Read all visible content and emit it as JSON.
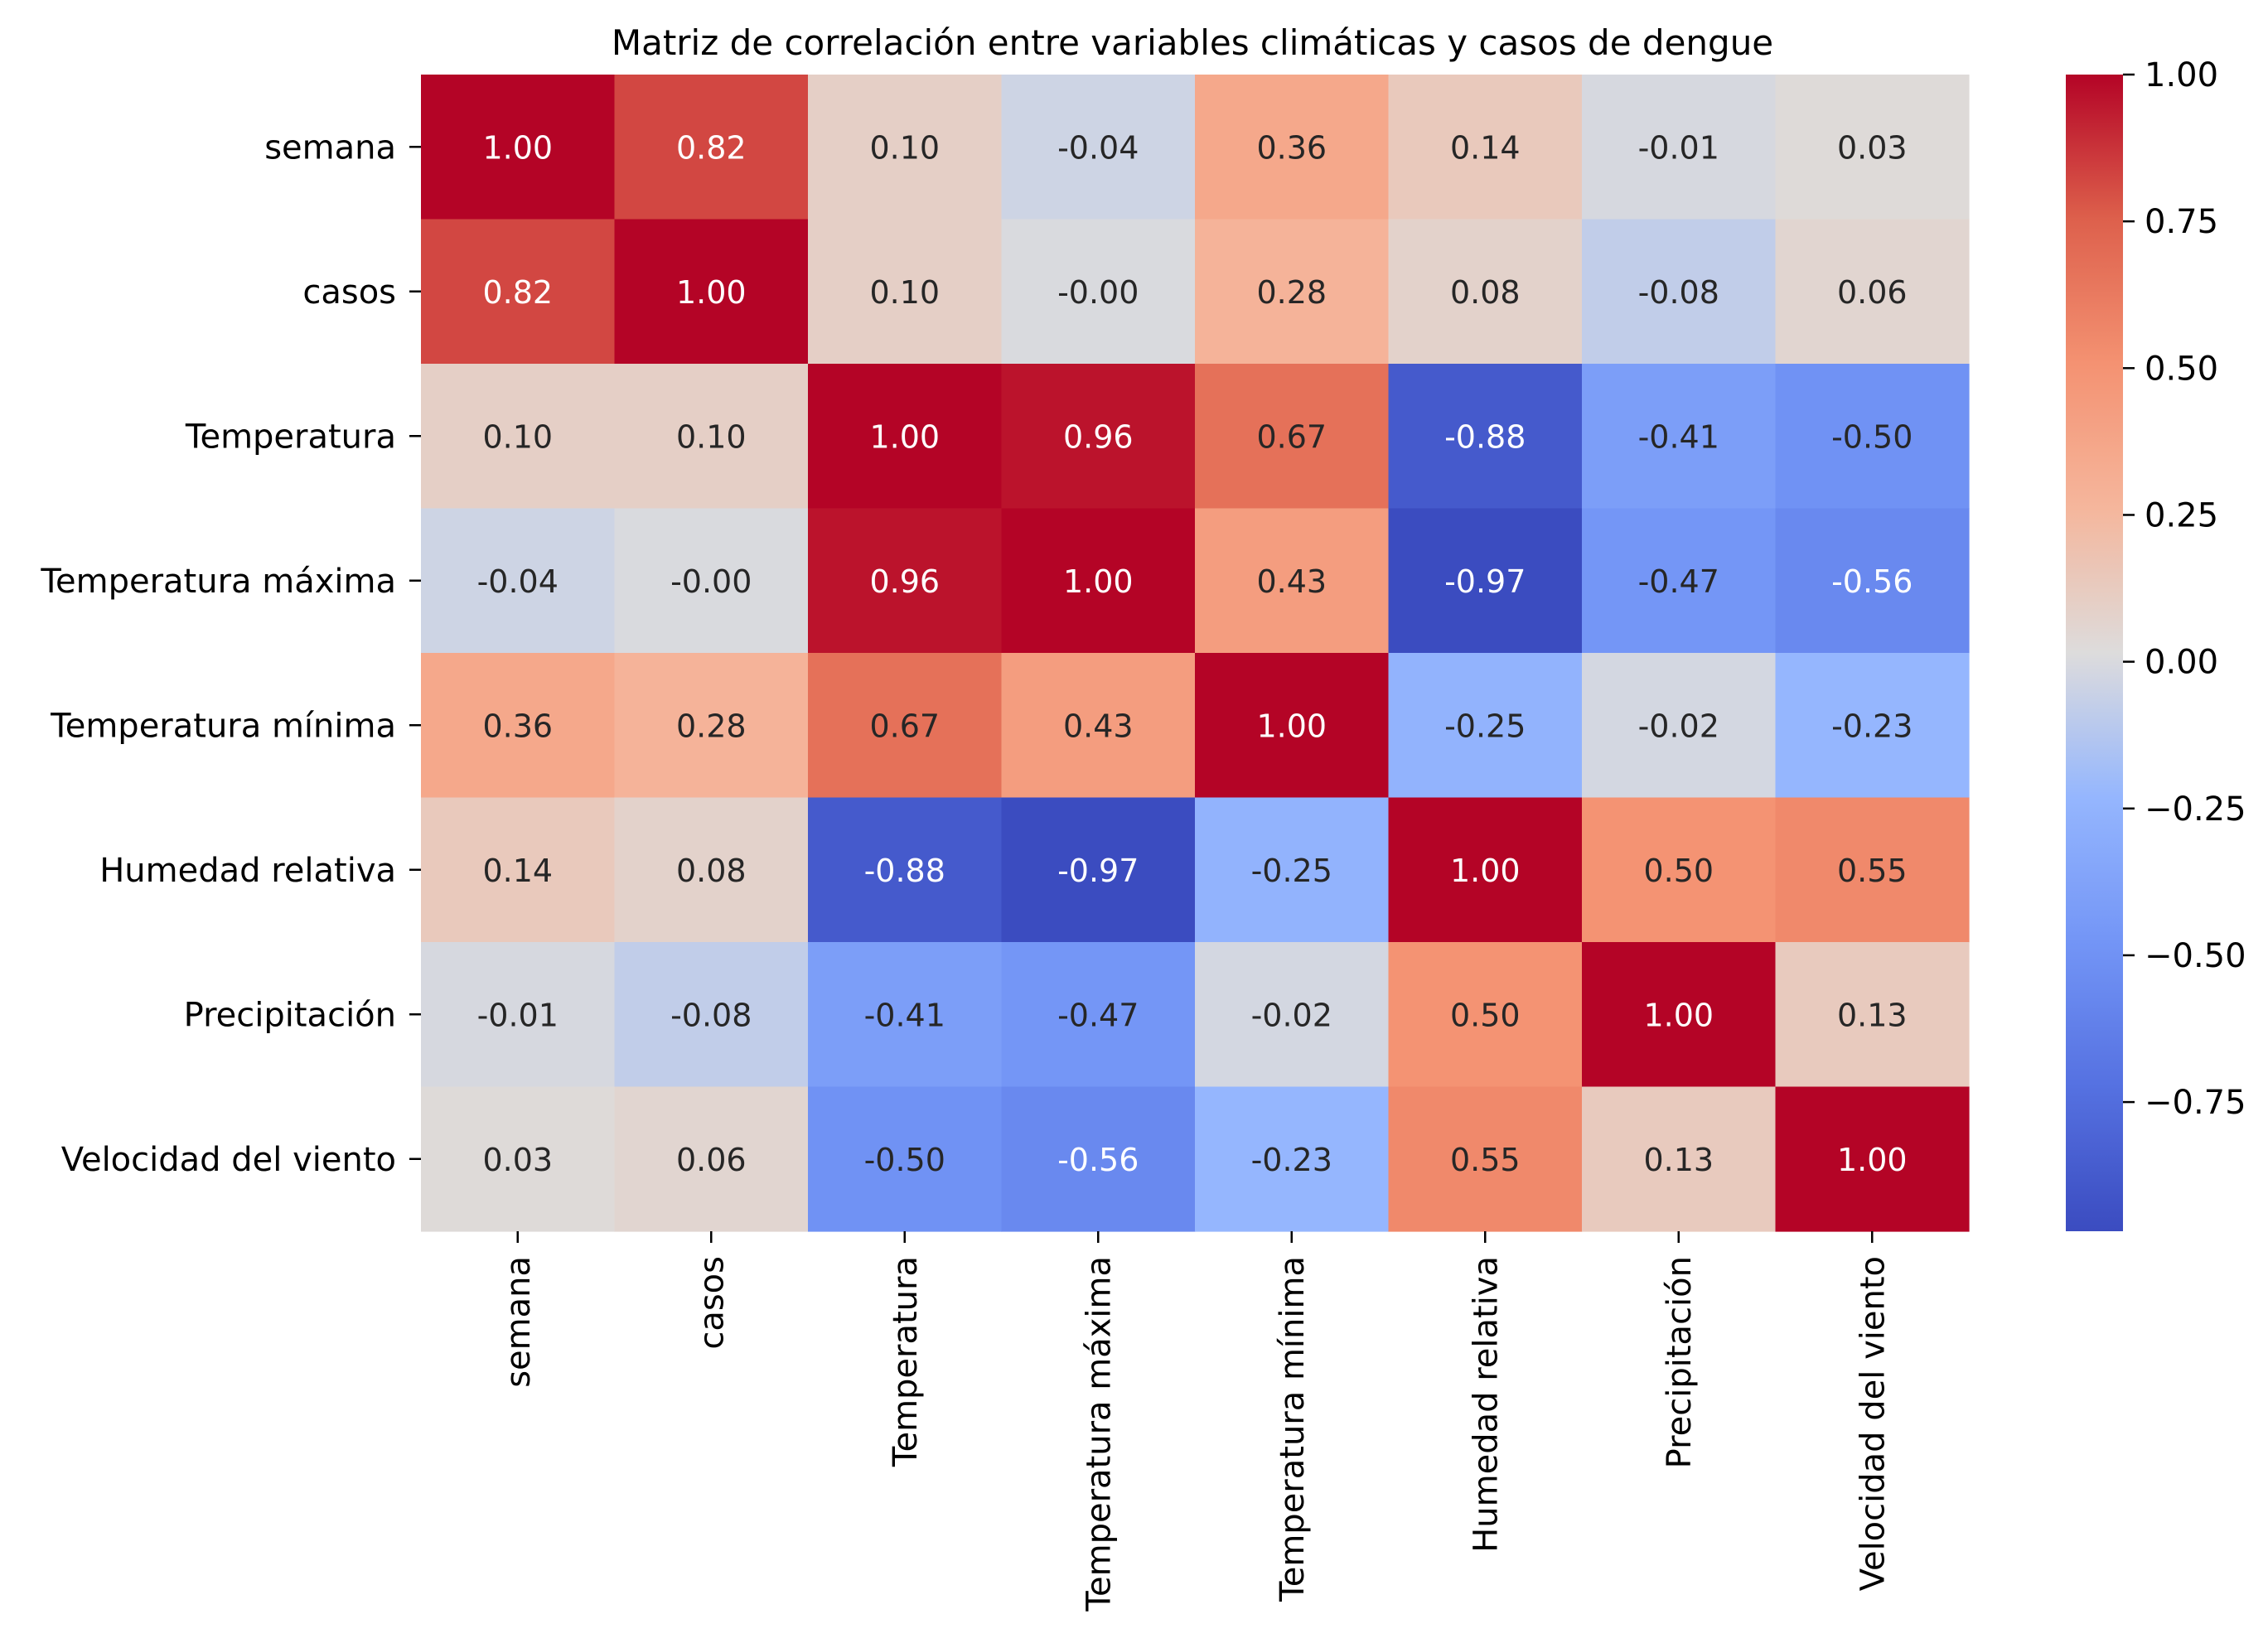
{
  "chart_data": {
    "type": "heatmap",
    "title": "Matriz de correlación entre variables climáticas y casos de dengue",
    "xlabel": "",
    "ylabel": "",
    "row_labels": [
      "semana",
      "casos",
      "Temperatura",
      "Temperatura máxima",
      "Temperatura mínima",
      "Humedad relativa",
      "Precipitación",
      "Velocidad del viento"
    ],
    "col_labels": [
      "semana",
      "casos",
      "Temperatura",
      "Temperatura máxima",
      "Temperatura mínima",
      "Humedad relativa",
      "Precipitación",
      "Velocidad del viento"
    ],
    "values": [
      [
        1.0,
        0.82,
        0.1,
        -0.04,
        0.36,
        0.14,
        -0.01,
        0.03
      ],
      [
        0.82,
        1.0,
        0.1,
        -0.0,
        0.28,
        0.08,
        -0.08,
        0.06
      ],
      [
        0.1,
        0.1,
        1.0,
        0.96,
        0.67,
        -0.88,
        -0.41,
        -0.5
      ],
      [
        -0.04,
        -0.0,
        0.96,
        1.0,
        0.43,
        -0.97,
        -0.47,
        -0.56
      ],
      [
        0.36,
        0.28,
        0.67,
        0.43,
        1.0,
        -0.25,
        -0.02,
        -0.23
      ],
      [
        0.14,
        0.08,
        -0.88,
        -0.97,
        -0.25,
        1.0,
        0.5,
        0.55
      ],
      [
        -0.01,
        -0.08,
        -0.41,
        -0.47,
        -0.02,
        0.5,
        1.0,
        0.13
      ],
      [
        0.03,
        0.06,
        -0.5,
        -0.56,
        -0.23,
        0.55,
        0.13,
        1.0
      ]
    ],
    "cell_labels": [
      [
        "1.00",
        "0.82",
        "0.10",
        "-0.04",
        "0.36",
        "0.14",
        "-0.01",
        "0.03"
      ],
      [
        "0.82",
        "1.00",
        "0.10",
        "-0.00",
        "0.28",
        "0.08",
        "-0.08",
        "0.06"
      ],
      [
        "0.10",
        "0.10",
        "1.00",
        "0.96",
        "0.67",
        "-0.88",
        "-0.41",
        "-0.50"
      ],
      [
        "-0.04",
        "-0.00",
        "0.96",
        "1.00",
        "0.43",
        "-0.97",
        "-0.47",
        "-0.56"
      ],
      [
        "0.36",
        "0.28",
        "0.67",
        "0.43",
        "1.00",
        "-0.25",
        "-0.02",
        "-0.23"
      ],
      [
        "0.14",
        "0.08",
        "-0.88",
        "-0.97",
        "-0.25",
        "1.00",
        "0.50",
        "0.55"
      ],
      [
        "-0.01",
        "-0.08",
        "-0.41",
        "-0.47",
        "-0.02",
        "0.50",
        "1.00",
        "0.13"
      ],
      [
        "0.03",
        "0.06",
        "-0.50",
        "-0.56",
        "-0.23",
        "0.55",
        "0.13",
        "1.00"
      ]
    ],
    "colormap": "coolwarm",
    "colorbar": {
      "range": [
        -0.97,
        1.0
      ],
      "ticks": [
        1.0,
        0.75,
        0.5,
        0.25,
        0.0,
        -0.25,
        -0.5,
        -0.75
      ],
      "tick_labels": [
        "1.00",
        "0.75",
        "0.50",
        "0.25",
        "0.00",
        "−0.25",
        "−0.50",
        "−0.75"
      ]
    },
    "grid": false,
    "legend": "colorbar-right"
  }
}
